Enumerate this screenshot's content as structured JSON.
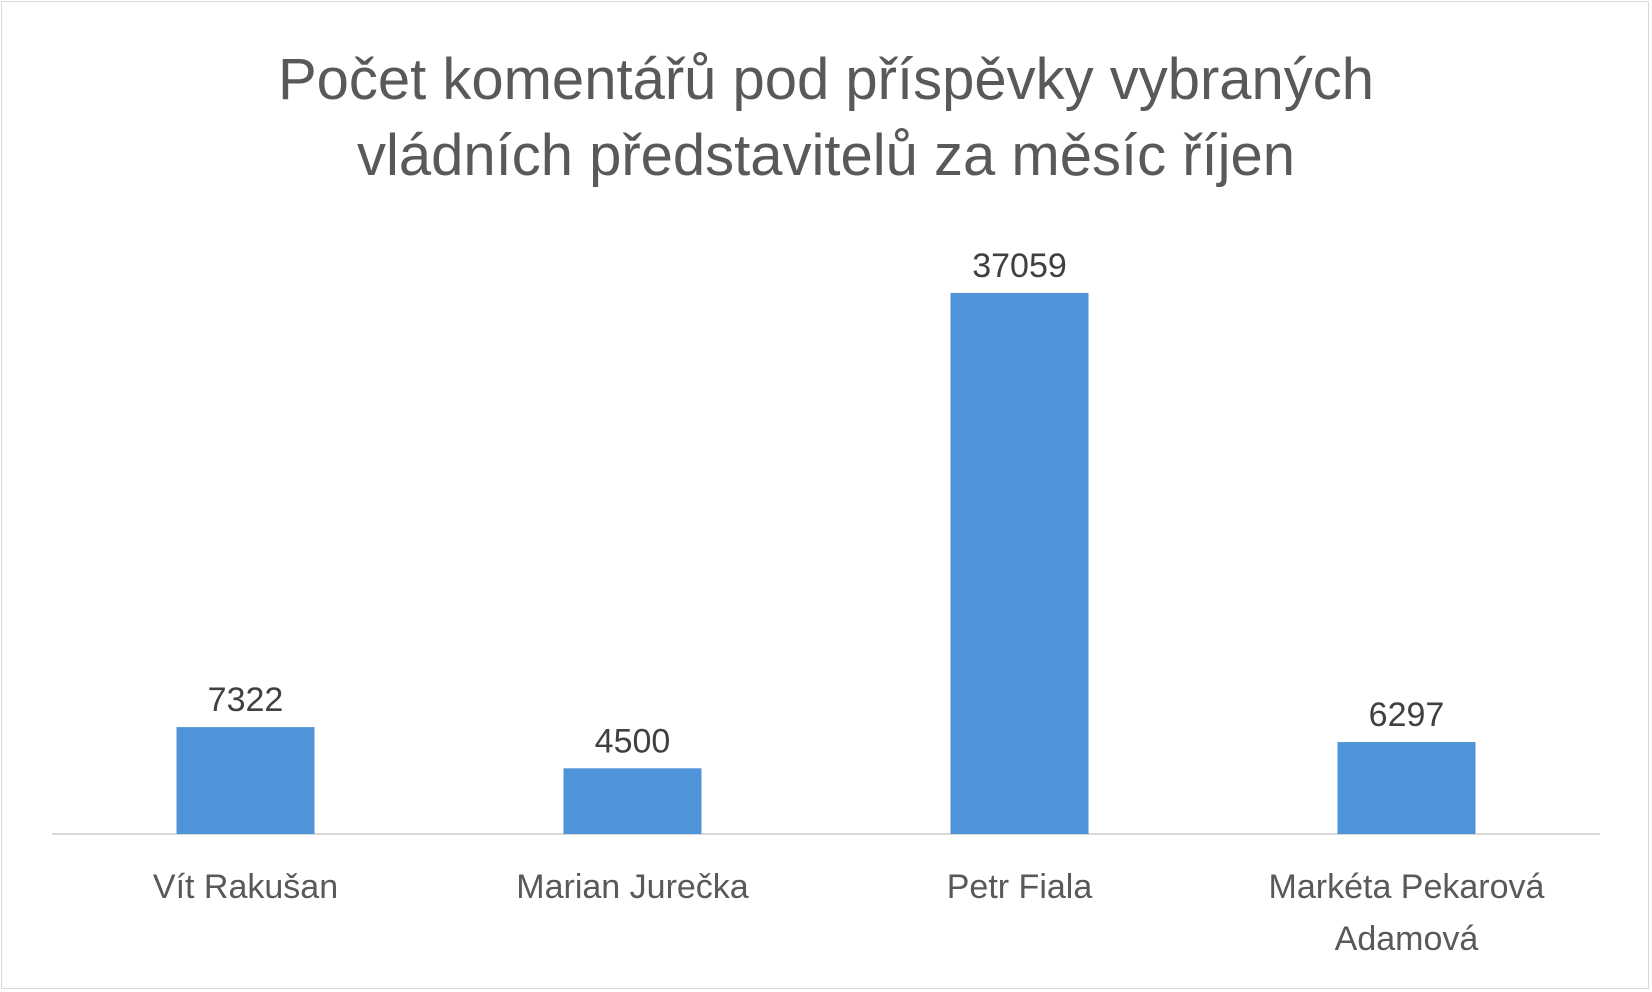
{
  "chart_data": {
    "type": "bar",
    "title_lines": [
      "Počet komentářů pod příspěvky vybraných",
      "vládních představitelů za měsíc říjen"
    ],
    "categories": [
      [
        "Vít Rakušan"
      ],
      [
        "Marian Jurečka"
      ],
      [
        "Petr Fiala"
      ],
      [
        "Markéta Pekarová",
        "Adamová"
      ]
    ],
    "values": [
      7322,
      4500,
      37059,
      6297
    ],
    "xlabel": "",
    "ylabel": "",
    "ylim": [
      0,
      40000
    ],
    "grid": false,
    "legend": "none",
    "data_labels": true,
    "colors": {
      "bar": "#4f94d8",
      "axis": "#d9d9d9"
    }
  }
}
